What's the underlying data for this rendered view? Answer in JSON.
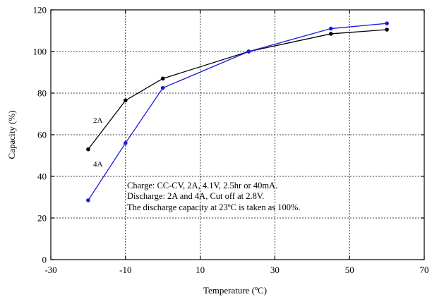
{
  "chart_data": {
    "type": "line",
    "xlabel": "Temperature (ºC)",
    "ylabel": "Capacity (%)",
    "xlim": [
      -30,
      70
    ],
    "ylim": [
      0,
      120
    ],
    "xticks": [
      -30,
      -10,
      10,
      30,
      50,
      70
    ],
    "yticks": [
      0,
      20,
      40,
      60,
      80,
      100,
      120
    ],
    "grid": true,
    "series": [
      {
        "name": "2A",
        "color": "#000000",
        "x": [
          -20,
          -10,
          0,
          23,
          45,
          60
        ],
        "y": [
          53,
          76.5,
          87,
          100,
          108.5,
          110.5
        ]
      },
      {
        "name": "4A",
        "color": "#1a1adc",
        "x": [
          -20,
          -10,
          0,
          23,
          45,
          60
        ],
        "y": [
          28.5,
          56,
          82.5,
          100,
          111,
          113.5
        ]
      }
    ],
    "annotations": [
      "Charge: CC-CV, 2A, 4.1V, 2.5hr or 40mA.",
      "Discharge: 2A and 4A, Cut off at 2.8V.",
      "The discharge capacity at 23ºC is taken as 100%."
    ]
  }
}
